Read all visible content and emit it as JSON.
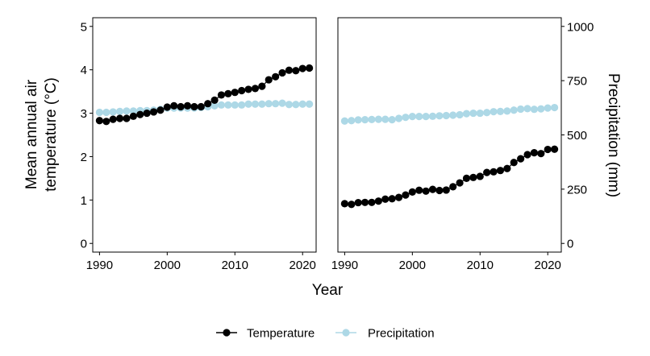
{
  "chart_data": {
    "type": "scatter",
    "xlabel": "Year",
    "legend": {
      "placement": "bottom",
      "entries": [
        {
          "label": "Temperature",
          "color": "#000000"
        },
        {
          "label": "Precipitation",
          "color": "#add8e6"
        }
      ]
    },
    "colors": {
      "Temperature": "#000000",
      "Precipitation": "#add8e6"
    },
    "grid": false,
    "panels": [
      {
        "ylabel_line1": "Mean annual air",
        "ylabel_line2": "temperature (°C)",
        "y_axis_side": "left",
        "xlim": [
          1989,
          2022
        ],
        "ylim": [
          -0.2,
          5.2
        ],
        "x_ticks": [
          1990,
          2000,
          2010,
          2020
        ],
        "y_ticks": [
          0,
          1,
          2,
          3,
          4,
          5
        ],
        "series": [
          {
            "name": "Temperature",
            "x": [
              1990,
              1991,
              1992,
              1993,
              1994,
              1995,
              1996,
              1997,
              1998,
              1999,
              2000,
              2001,
              2002,
              2003,
              2004,
              2005,
              2006,
              2007,
              2008,
              2009,
              2010,
              2011,
              2012,
              2013,
              2014,
              2015,
              2016,
              2017,
              2018,
              2019,
              2020,
              2021
            ],
            "y": [
              2.83,
              2.81,
              2.86,
              2.88,
              2.88,
              2.93,
              2.97,
              3.0,
              3.03,
              3.07,
              3.14,
              3.17,
              3.15,
              3.17,
              3.15,
              3.15,
              3.22,
              3.3,
              3.42,
              3.45,
              3.48,
              3.52,
              3.55,
              3.57,
              3.62,
              3.77,
              3.84,
              3.93,
              3.99,
              3.98,
              4.03,
              4.04
            ]
          },
          {
            "name": "Precipitation",
            "x": [
              1990,
              1991,
              1992,
              1993,
              1994,
              1995,
              1996,
              1997,
              1998,
              1999,
              2000,
              2001,
              2002,
              2003,
              2004,
              2005,
              2006,
              2007,
              2008,
              2009,
              2010,
              2011,
              2012,
              2013,
              2014,
              2015,
              2016,
              2017,
              2018,
              2019,
              2020,
              2021
            ],
            "y": [
              3.02,
              3.02,
              3.03,
              3.04,
              3.05,
              3.05,
              3.06,
              3.06,
              3.07,
              3.09,
              3.12,
              3.12,
              3.12,
              3.12,
              3.12,
              3.13,
              3.15,
              3.17,
              3.19,
              3.19,
              3.19,
              3.19,
              3.21,
              3.21,
              3.21,
              3.22,
              3.22,
              3.23,
              3.2,
              3.2,
              3.21,
              3.21
            ]
          }
        ]
      },
      {
        "ylabel": "Precipitation (mm)",
        "y_axis_side": "right",
        "xlim": [
          1989,
          2022
        ],
        "ylim": [
          -40,
          1040
        ],
        "x_ticks": [
          1990,
          2000,
          2010,
          2020
        ],
        "y_ticks": [
          0,
          250,
          500,
          750,
          1000
        ],
        "series": [
          {
            "name": "Temperature",
            "x": [
              1990,
              1991,
              1992,
              1993,
              1994,
              1995,
              1996,
              1997,
              1998,
              1999,
              2000,
              2001,
              2002,
              2003,
              2004,
              2005,
              2006,
              2007,
              2008,
              2009,
              2010,
              2011,
              2012,
              2013,
              2014,
              2015,
              2016,
              2017,
              2018,
              2019,
              2020,
              2021
            ],
            "y": [
              183,
              180,
              188,
              189,
              189,
              195,
              204,
              206,
              212,
              223,
              237,
              245,
              241,
              249,
              244,
              246,
              261,
              279,
              300,
              304,
              309,
              327,
              330,
              336,
              345,
              373,
              390,
              409,
              418,
              414,
              433,
              434
            ]
          },
          {
            "name": "Precipitation",
            "x": [
              1990,
              1991,
              1992,
              1993,
              1994,
              1995,
              1996,
              1997,
              1998,
              1999,
              2000,
              2001,
              2002,
              2003,
              2004,
              2005,
              2006,
              2007,
              2008,
              2009,
              2010,
              2011,
              2012,
              2013,
              2014,
              2015,
              2016,
              2017,
              2018,
              2019,
              2020,
              2021
            ],
            "y": [
              564,
              566,
              569,
              570,
              571,
              572,
              572,
              570,
              576,
              581,
              585,
              585,
              585,
              586,
              588,
              589,
              591,
              593,
              598,
              600,
              600,
              603,
              607,
              608,
              610,
              614,
              619,
              621,
              618,
              620,
              624,
              626
            ]
          }
        ]
      }
    ]
  }
}
